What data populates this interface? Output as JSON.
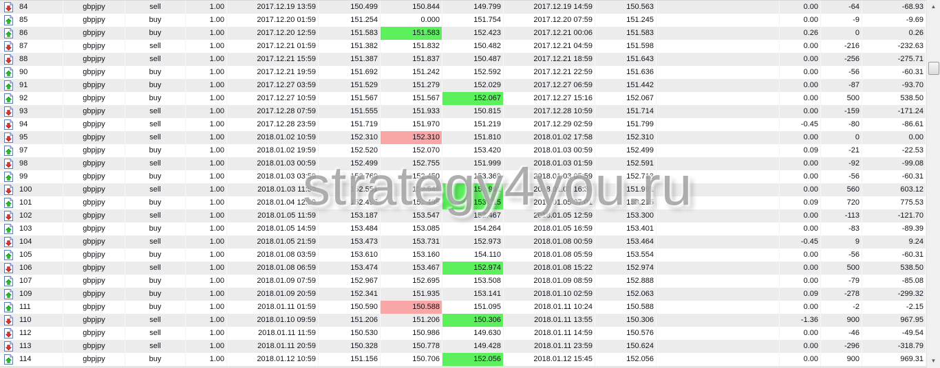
{
  "colors": {
    "tp_hit": "#5cf05c",
    "sl_hit": "#f8a6a6",
    "buy_arrow": "#22c022",
    "sell_arrow": "#e03030",
    "row_alt": "#ececec"
  },
  "icons": {
    "buy": "buy-order-up-arrow-icon",
    "sell": "sell-order-down-arrow-icon"
  },
  "watermark": "strategy4you.ru",
  "rows": [
    {
      "ticket": "84",
      "symbol": "gbpjpy",
      "type": "sell",
      "volume": "1.00",
      "open_time": "2017.12.19 13:59",
      "open_price": "150.499",
      "sl": "150.844",
      "tp": "149.799",
      "close_time": "2017.12.19 14:59",
      "close_price": "150.563",
      "commission": "",
      "swap": "0.00",
      "pips": "-64",
      "profit": "-68.93",
      "hit": ""
    },
    {
      "ticket": "85",
      "symbol": "gbpjpy",
      "type": "buy",
      "volume": "1.00",
      "open_time": "2017.12.20 01:59",
      "open_price": "151.254",
      "sl": "0.000",
      "tp": "151.754",
      "close_time": "2017.12.20 07:59",
      "close_price": "151.245",
      "commission": "",
      "swap": "0.00",
      "pips": "-9",
      "profit": "-9.69",
      "hit": ""
    },
    {
      "ticket": "86",
      "symbol": "gbpjpy",
      "type": "buy",
      "volume": "1.00",
      "open_time": "2017.12.20 12:59",
      "open_price": "151.583",
      "sl": "151.583",
      "tp": "152.423",
      "close_time": "2017.12.21 00:06",
      "close_price": "151.583",
      "commission": "",
      "swap": "0.26",
      "pips": "0",
      "profit": "0.26",
      "hit": "sl-green"
    },
    {
      "ticket": "87",
      "symbol": "gbpjpy",
      "type": "sell",
      "volume": "1.00",
      "open_time": "2017.12.21 01:59",
      "open_price": "151.382",
      "sl": "151.832",
      "tp": "150.482",
      "close_time": "2017.12.21 04:59",
      "close_price": "151.598",
      "commission": "",
      "swap": "0.00",
      "pips": "-216",
      "profit": "-232.63",
      "hit": ""
    },
    {
      "ticket": "88",
      "symbol": "gbpjpy",
      "type": "sell",
      "volume": "1.00",
      "open_time": "2017.12.21 15:59",
      "open_price": "151.387",
      "sl": "151.837",
      "tp": "150.487",
      "close_time": "2017.12.21 18:59",
      "close_price": "151.643",
      "commission": "",
      "swap": "0.00",
      "pips": "-256",
      "profit": "-275.71",
      "hit": ""
    },
    {
      "ticket": "90",
      "symbol": "gbpjpy",
      "type": "buy",
      "volume": "1.00",
      "open_time": "2017.12.21 19:59",
      "open_price": "151.692",
      "sl": "151.242",
      "tp": "152.592",
      "close_time": "2017.12.21 22:59",
      "close_price": "151.636",
      "commission": "",
      "swap": "0.00",
      "pips": "-56",
      "profit": "-60.31",
      "hit": ""
    },
    {
      "ticket": "91",
      "symbol": "gbpjpy",
      "type": "buy",
      "volume": "1.00",
      "open_time": "2017.12.27 03:59",
      "open_price": "151.529",
      "sl": "151.279",
      "tp": "152.029",
      "close_time": "2017.12.27 06:59",
      "close_price": "151.442",
      "commission": "",
      "swap": "0.00",
      "pips": "-87",
      "profit": "-93.70",
      "hit": ""
    },
    {
      "ticket": "92",
      "symbol": "gbpjpy",
      "type": "buy",
      "volume": "1.00",
      "open_time": "2017.12.27 10:59",
      "open_price": "151.567",
      "sl": "151.567",
      "tp": "152.067",
      "close_time": "2017.12.27 15:16",
      "close_price": "152.067",
      "commission": "",
      "swap": "0.00",
      "pips": "500",
      "profit": "538.50",
      "hit": "tp"
    },
    {
      "ticket": "93",
      "symbol": "gbpjpy",
      "type": "sell",
      "volume": "1.00",
      "open_time": "2017.12.28 07:59",
      "open_price": "151.555",
      "sl": "151.933",
      "tp": "150.815",
      "close_time": "2017.12.28 10:59",
      "close_price": "151.714",
      "commission": "",
      "swap": "0.00",
      "pips": "-159",
      "profit": "-171.24",
      "hit": ""
    },
    {
      "ticket": "94",
      "symbol": "gbpjpy",
      "type": "sell",
      "volume": "1.00",
      "open_time": "2017.12.28 23:59",
      "open_price": "151.719",
      "sl": "151.970",
      "tp": "151.219",
      "close_time": "2017.12.29 02:59",
      "close_price": "151.799",
      "commission": "",
      "swap": "-0.45",
      "pips": "-80",
      "profit": "-86.61",
      "hit": ""
    },
    {
      "ticket": "95",
      "symbol": "gbpjpy",
      "type": "sell",
      "volume": "1.00",
      "open_time": "2018.01.02 10:59",
      "open_price": "152.310",
      "sl": "152.310",
      "tp": "151.810",
      "close_time": "2018.01.02 17:58",
      "close_price": "152.310",
      "commission": "",
      "swap": "0.00",
      "pips": "0",
      "profit": "0.00",
      "hit": "sl-red"
    },
    {
      "ticket": "97",
      "symbol": "gbpjpy",
      "type": "buy",
      "volume": "1.00",
      "open_time": "2018.01.02 19:59",
      "open_price": "152.520",
      "sl": "152.070",
      "tp": "153.420",
      "close_time": "2018.01.03 00:59",
      "close_price": "152.499",
      "commission": "",
      "swap": "0.09",
      "pips": "-21",
      "profit": "-22.53",
      "hit": ""
    },
    {
      "ticket": "98",
      "symbol": "gbpjpy",
      "type": "sell",
      "volume": "1.00",
      "open_time": "2018.01.03 00:59",
      "open_price": "152.499",
      "sl": "152.755",
      "tp": "151.999",
      "close_time": "2018.01.03 01:59",
      "close_price": "152.591",
      "commission": "",
      "swap": "0.00",
      "pips": "-92",
      "profit": "-99.08",
      "hit": ""
    },
    {
      "ticket": "99",
      "symbol": "gbpjpy",
      "type": "buy",
      "volume": "1.00",
      "open_time": "2018.01.03 03:59",
      "open_price": "152.769",
      "sl": "152.450",
      "tp": "153.369",
      "close_time": "2018.01.03 05:59",
      "close_price": "152.713",
      "commission": "",
      "swap": "0.00",
      "pips": "-56",
      "profit": "-60.31",
      "hit": ""
    },
    {
      "ticket": "100",
      "symbol": "gbpjpy",
      "type": "sell",
      "volume": "1.00",
      "open_time": "2018.01.03 11:59",
      "open_price": "152.551",
      "sl": "152.549",
      "tp": "151.991",
      "close_time": "2018.01.03 16:36",
      "close_price": "151.991",
      "commission": "",
      "swap": "0.00",
      "pips": "560",
      "profit": "603.12",
      "hit": "tp"
    },
    {
      "ticket": "101",
      "symbol": "gbpjpy",
      "type": "buy",
      "volume": "1.00",
      "open_time": "2018.01.04 12:59",
      "open_price": "152.495",
      "sl": "152.495",
      "tp": "153.215",
      "close_time": "2018.01.05 07:01",
      "close_price": "153.215",
      "commission": "",
      "swap": "0.09",
      "pips": "720",
      "profit": "775.53",
      "hit": "tp"
    },
    {
      "ticket": "102",
      "symbol": "gbpjpy",
      "type": "sell",
      "volume": "1.00",
      "open_time": "2018.01.05 11:59",
      "open_price": "153.187",
      "sl": "153.547",
      "tp": "152.467",
      "close_time": "2018.01.05 12:59",
      "close_price": "153.300",
      "commission": "",
      "swap": "0.00",
      "pips": "-113",
      "profit": "-121.70",
      "hit": ""
    },
    {
      "ticket": "103",
      "symbol": "gbpjpy",
      "type": "buy",
      "volume": "1.00",
      "open_time": "2018.01.05 14:59",
      "open_price": "153.484",
      "sl": "153.085",
      "tp": "154.264",
      "close_time": "2018.01.05 16:59",
      "close_price": "153.401",
      "commission": "",
      "swap": "0.00",
      "pips": "-83",
      "profit": "-89.39",
      "hit": ""
    },
    {
      "ticket": "104",
      "symbol": "gbpjpy",
      "type": "sell",
      "volume": "1.00",
      "open_time": "2018.01.05 21:59",
      "open_price": "153.473",
      "sl": "153.731",
      "tp": "152.973",
      "close_time": "2018.01.08 00:59",
      "close_price": "153.464",
      "commission": "",
      "swap": "-0.45",
      "pips": "9",
      "profit": "9.24",
      "hit": ""
    },
    {
      "ticket": "105",
      "symbol": "gbpjpy",
      "type": "buy",
      "volume": "1.00",
      "open_time": "2018.01.08 03:59",
      "open_price": "153.610",
      "sl": "153.160",
      "tp": "154.110",
      "close_time": "2018.01.08 05:59",
      "close_price": "153.554",
      "commission": "",
      "swap": "0.00",
      "pips": "-56",
      "profit": "-60.31",
      "hit": ""
    },
    {
      "ticket": "106",
      "symbol": "gbpjpy",
      "type": "sell",
      "volume": "1.00",
      "open_time": "2018.01.08 06:59",
      "open_price": "153.474",
      "sl": "153.467",
      "tp": "152.974",
      "close_time": "2018.01.08 15:22",
      "close_price": "152.974",
      "commission": "",
      "swap": "0.00",
      "pips": "500",
      "profit": "538.50",
      "hit": "tp"
    },
    {
      "ticket": "107",
      "symbol": "gbpjpy",
      "type": "buy",
      "volume": "1.00",
      "open_time": "2018.01.09 07:59",
      "open_price": "152.967",
      "sl": "152.695",
      "tp": "153.508",
      "close_time": "2018.01.09 08:59",
      "close_price": "152.888",
      "commission": "",
      "swap": "0.00",
      "pips": "-79",
      "profit": "-85.08",
      "hit": ""
    },
    {
      "ticket": "109",
      "symbol": "gbpjpy",
      "type": "buy",
      "volume": "1.00",
      "open_time": "2018.01.09 20:59",
      "open_price": "152.341",
      "sl": "151.935",
      "tp": "153.141",
      "close_time": "2018.01.10 02:59",
      "close_price": "152.063",
      "commission": "",
      "swap": "0.09",
      "pips": "-278",
      "profit": "-299.32",
      "hit": ""
    },
    {
      "ticket": "111",
      "symbol": "gbpjpy",
      "type": "buy",
      "volume": "1.00",
      "open_time": "2018.01.11 01:59",
      "open_price": "150.590",
      "sl": "150.588",
      "tp": "151.095",
      "close_time": "2018.01.11 10:24",
      "close_price": "150.588",
      "commission": "",
      "swap": "0.00",
      "pips": "-2",
      "profit": "-2.15",
      "hit": "sl-red"
    },
    {
      "ticket": "110",
      "symbol": "gbpjpy",
      "type": "sell",
      "volume": "1.00",
      "open_time": "2018.01.10 09:59",
      "open_price": "151.206",
      "sl": "151.206",
      "tp": "150.306",
      "close_time": "2018.01.11 13:55",
      "close_price": "150.306",
      "commission": "",
      "swap": "-1.36",
      "pips": "900",
      "profit": "967.95",
      "hit": "tp"
    },
    {
      "ticket": "112",
      "symbol": "gbpjpy",
      "type": "sell",
      "volume": "1.00",
      "open_time": "2018.01.11 11:59",
      "open_price": "150.530",
      "sl": "150.986",
      "tp": "149.630",
      "close_time": "2018.01.11 14:59",
      "close_price": "150.576",
      "commission": "",
      "swap": "0.00",
      "pips": "-46",
      "profit": "-49.54",
      "hit": ""
    },
    {
      "ticket": "113",
      "symbol": "gbpjpy",
      "type": "sell",
      "volume": "1.00",
      "open_time": "2018.01.11 20:59",
      "open_price": "150.328",
      "sl": "150.778",
      "tp": "149.428",
      "close_time": "2018.01.11 23:59",
      "close_price": "150.624",
      "commission": "",
      "swap": "0.00",
      "pips": "-296",
      "profit": "-318.79",
      "hit": ""
    },
    {
      "ticket": "114",
      "symbol": "gbpjpy",
      "type": "buy",
      "volume": "1.00",
      "open_time": "2018.01.12 10:59",
      "open_price": "151.156",
      "sl": "150.706",
      "tp": "152.056",
      "close_time": "2018.01.12 15:45",
      "close_price": "152.056",
      "commission": "",
      "swap": "0.00",
      "pips": "900",
      "profit": "969.31",
      "hit": "tp"
    }
  ]
}
